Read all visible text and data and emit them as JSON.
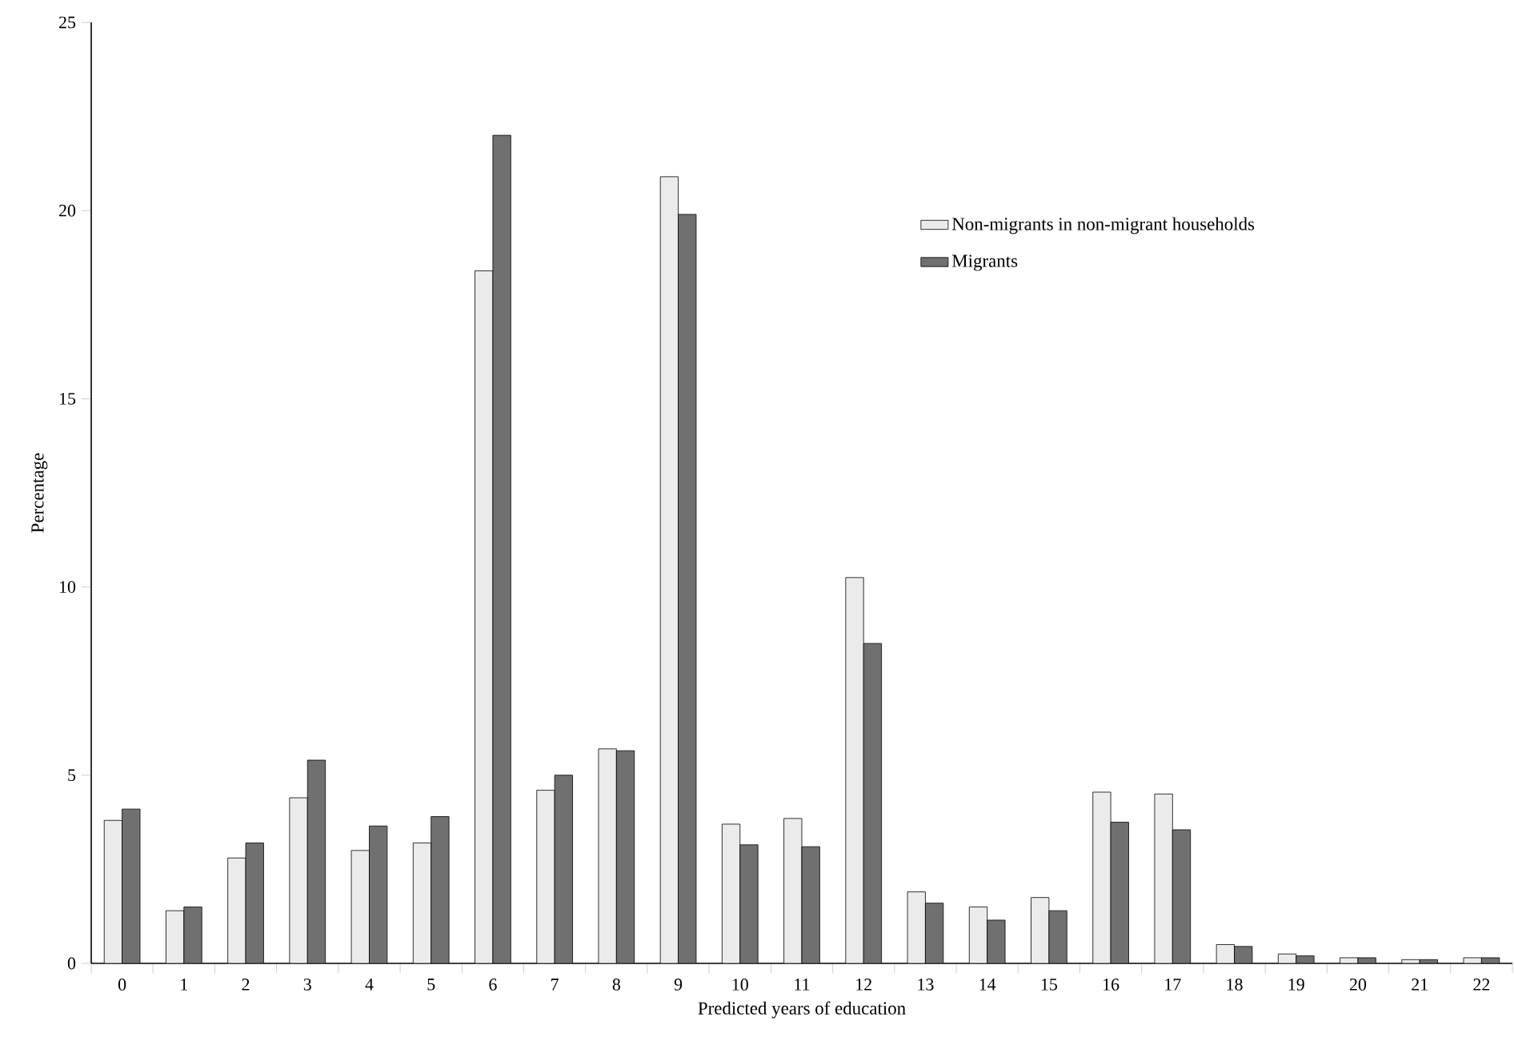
{
  "chart_data": {
    "type": "bar",
    "xlabel": "Predicted years of education",
    "ylabel": "Percentage",
    "categories": [
      "0",
      "1",
      "2",
      "3",
      "4",
      "5",
      "6",
      "7",
      "8",
      "9",
      "10",
      "11",
      "12",
      "13",
      "14",
      "15",
      "16",
      "17",
      "18",
      "19",
      "20",
      "21",
      "22"
    ],
    "series": [
      {
        "name": "Non-migrants in non-migrant households",
        "color": "#ebebeb",
        "values": [
          3.8,
          1.4,
          2.8,
          4.4,
          3.0,
          3.2,
          18.4,
          4.6,
          5.7,
          20.9,
          3.7,
          3.85,
          10.25,
          1.9,
          1.5,
          1.75,
          4.55,
          4.5,
          0.5,
          0.25,
          0.15,
          0.1,
          0.15
        ]
      },
      {
        "name": "Migrants",
        "color": "#707070",
        "values": [
          4.1,
          1.5,
          3.2,
          5.4,
          3.65,
          3.9,
          22.0,
          5.0,
          5.65,
          19.9,
          3.15,
          3.1,
          8.5,
          1.6,
          1.15,
          1.4,
          3.75,
          3.55,
          0.45,
          0.2,
          0.15,
          0.1,
          0.15
        ]
      }
    ],
    "ylim": [
      0,
      25
    ],
    "yticks": [
      0,
      5,
      10,
      15,
      20,
      25
    ],
    "legend": "top right",
    "grid": false
  }
}
